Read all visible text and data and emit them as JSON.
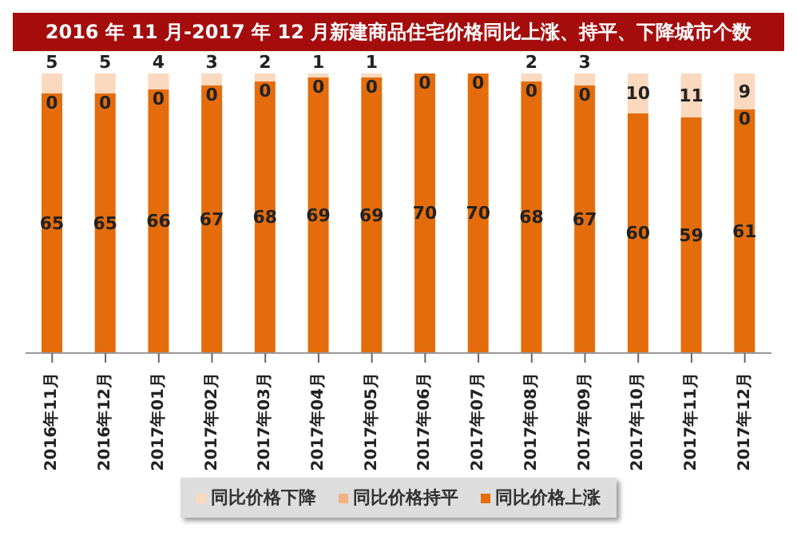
{
  "chart_data": {
    "type": "bar",
    "title": "2016 年 11 月-2017 年 12 月新建商品住宅价格同比上涨、持平、下降城市个数",
    "stacked": true,
    "categories": [
      "2016年11月",
      "2016年12月",
      "2017年01月",
      "2017年02月",
      "2017年03月",
      "2017年04月",
      "2017年05月",
      "2017年06月",
      "2017年07月",
      "2017年08月",
      "2017年09月",
      "2017年10月",
      "2017年11月",
      "2017年12月"
    ],
    "series": [
      {
        "name": "同比价格上涨",
        "color": "#e46c0a",
        "values": [
          65,
          65,
          66,
          67,
          68,
          69,
          69,
          70,
          70,
          68,
          67,
          60,
          59,
          61
        ],
        "value_labels": [
          "65",
          "65",
          "66",
          "67",
          "68",
          "69",
          "69",
          "70",
          "70",
          "68",
          "67",
          "60",
          "59",
          "61"
        ]
      },
      {
        "name": "同比价格持平",
        "color": "#f4b183",
        "values": [
          0,
          0,
          0,
          0,
          0,
          0,
          0,
          0,
          0,
          0,
          0,
          0,
          0,
          0
        ],
        "value_labels": [
          "0",
          "0",
          "0",
          "0",
          "0",
          "0",
          "0",
          "0",
          "0",
          "0",
          "0",
          null,
          null,
          "0"
        ]
      },
      {
        "name": "同比价格下降",
        "color": "#fbd9bf",
        "values": [
          5,
          5,
          4,
          3,
          2,
          1,
          1,
          0,
          0,
          2,
          3,
          10,
          11,
          9
        ],
        "value_labels": [
          "5",
          "5",
          "4",
          "3",
          "2",
          "1",
          "1",
          null,
          null,
          "2",
          "3",
          "10",
          "11",
          "9"
        ]
      }
    ],
    "legend": "bottom",
    "grid": false
  }
}
